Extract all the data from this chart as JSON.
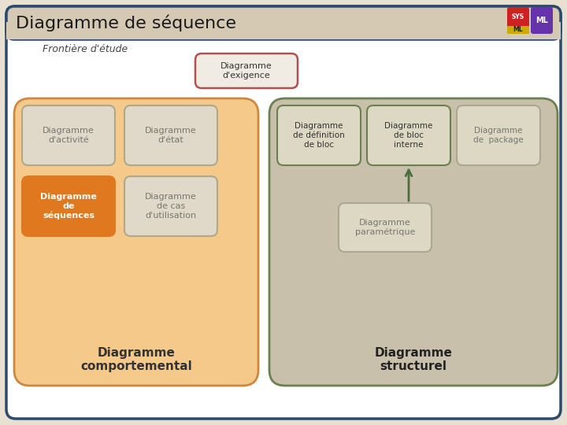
{
  "title": "Diagramme de séquence",
  "title_bg": "#d6c9b4",
  "outer_bg": "#e8e0d0",
  "main_bg": "#ffffff",
  "main_border": "#2c4a6e",
  "frontier_label": "Frontière d'étude",
  "behav_box_bg": "#f5c98a",
  "behav_box_border": "#cc8840",
  "struct_box_bg": "#c8c0aa",
  "struct_box_border": "#6a8050",
  "behav_label": "Diagramme\ncomportemental",
  "struct_label": "Diagramme\nstructurel",
  "exigence_box": {
    "label": "Diagramme\nd'exigence",
    "bg": "#f0ece4",
    "border": "#b05050"
  },
  "behav_items": [
    {
      "label": "Diagramme\nd'activité",
      "bg": "#e0d8c8",
      "border": "#b0a888",
      "bold": false,
      "white_text": false
    },
    {
      "label": "Diagramme\nd'état",
      "bg": "#e0d8c8",
      "border": "#b0a888",
      "bold": false,
      "white_text": false
    },
    {
      "label": "Diagramme\nde\nséquences",
      "bg": "#e07820",
      "border": "#e07820",
      "bold": true,
      "white_text": true
    },
    {
      "label": "Diagramme\nde cas\nd'utilisation",
      "bg": "#e0d8c8",
      "border": "#b0a888",
      "bold": false,
      "white_text": false
    }
  ],
  "struct_items": [
    {
      "label": "Diagramme\nde définition\nde bloc",
      "bg": "#dcd8c4",
      "border": "#6a8050"
    },
    {
      "label": "Diagramme\nde bloc\ninterne",
      "bg": "#dcd8c4",
      "border": "#6a8050"
    },
    {
      "label": "Diagramme\nde  package",
      "bg": "#dcd8c4",
      "border": "#aaa890"
    }
  ],
  "param_box": {
    "label": "Diagramme\nparamétrique",
    "bg": "#dcd8c4",
    "border": "#aaa890"
  },
  "arrow_color": "#4a7040",
  "text_dark": "#333333",
  "text_grey": "#777770",
  "logo_red": "#cc2222",
  "logo_purple": "#6633aa",
  "logo_yellow": "#ccaa00"
}
